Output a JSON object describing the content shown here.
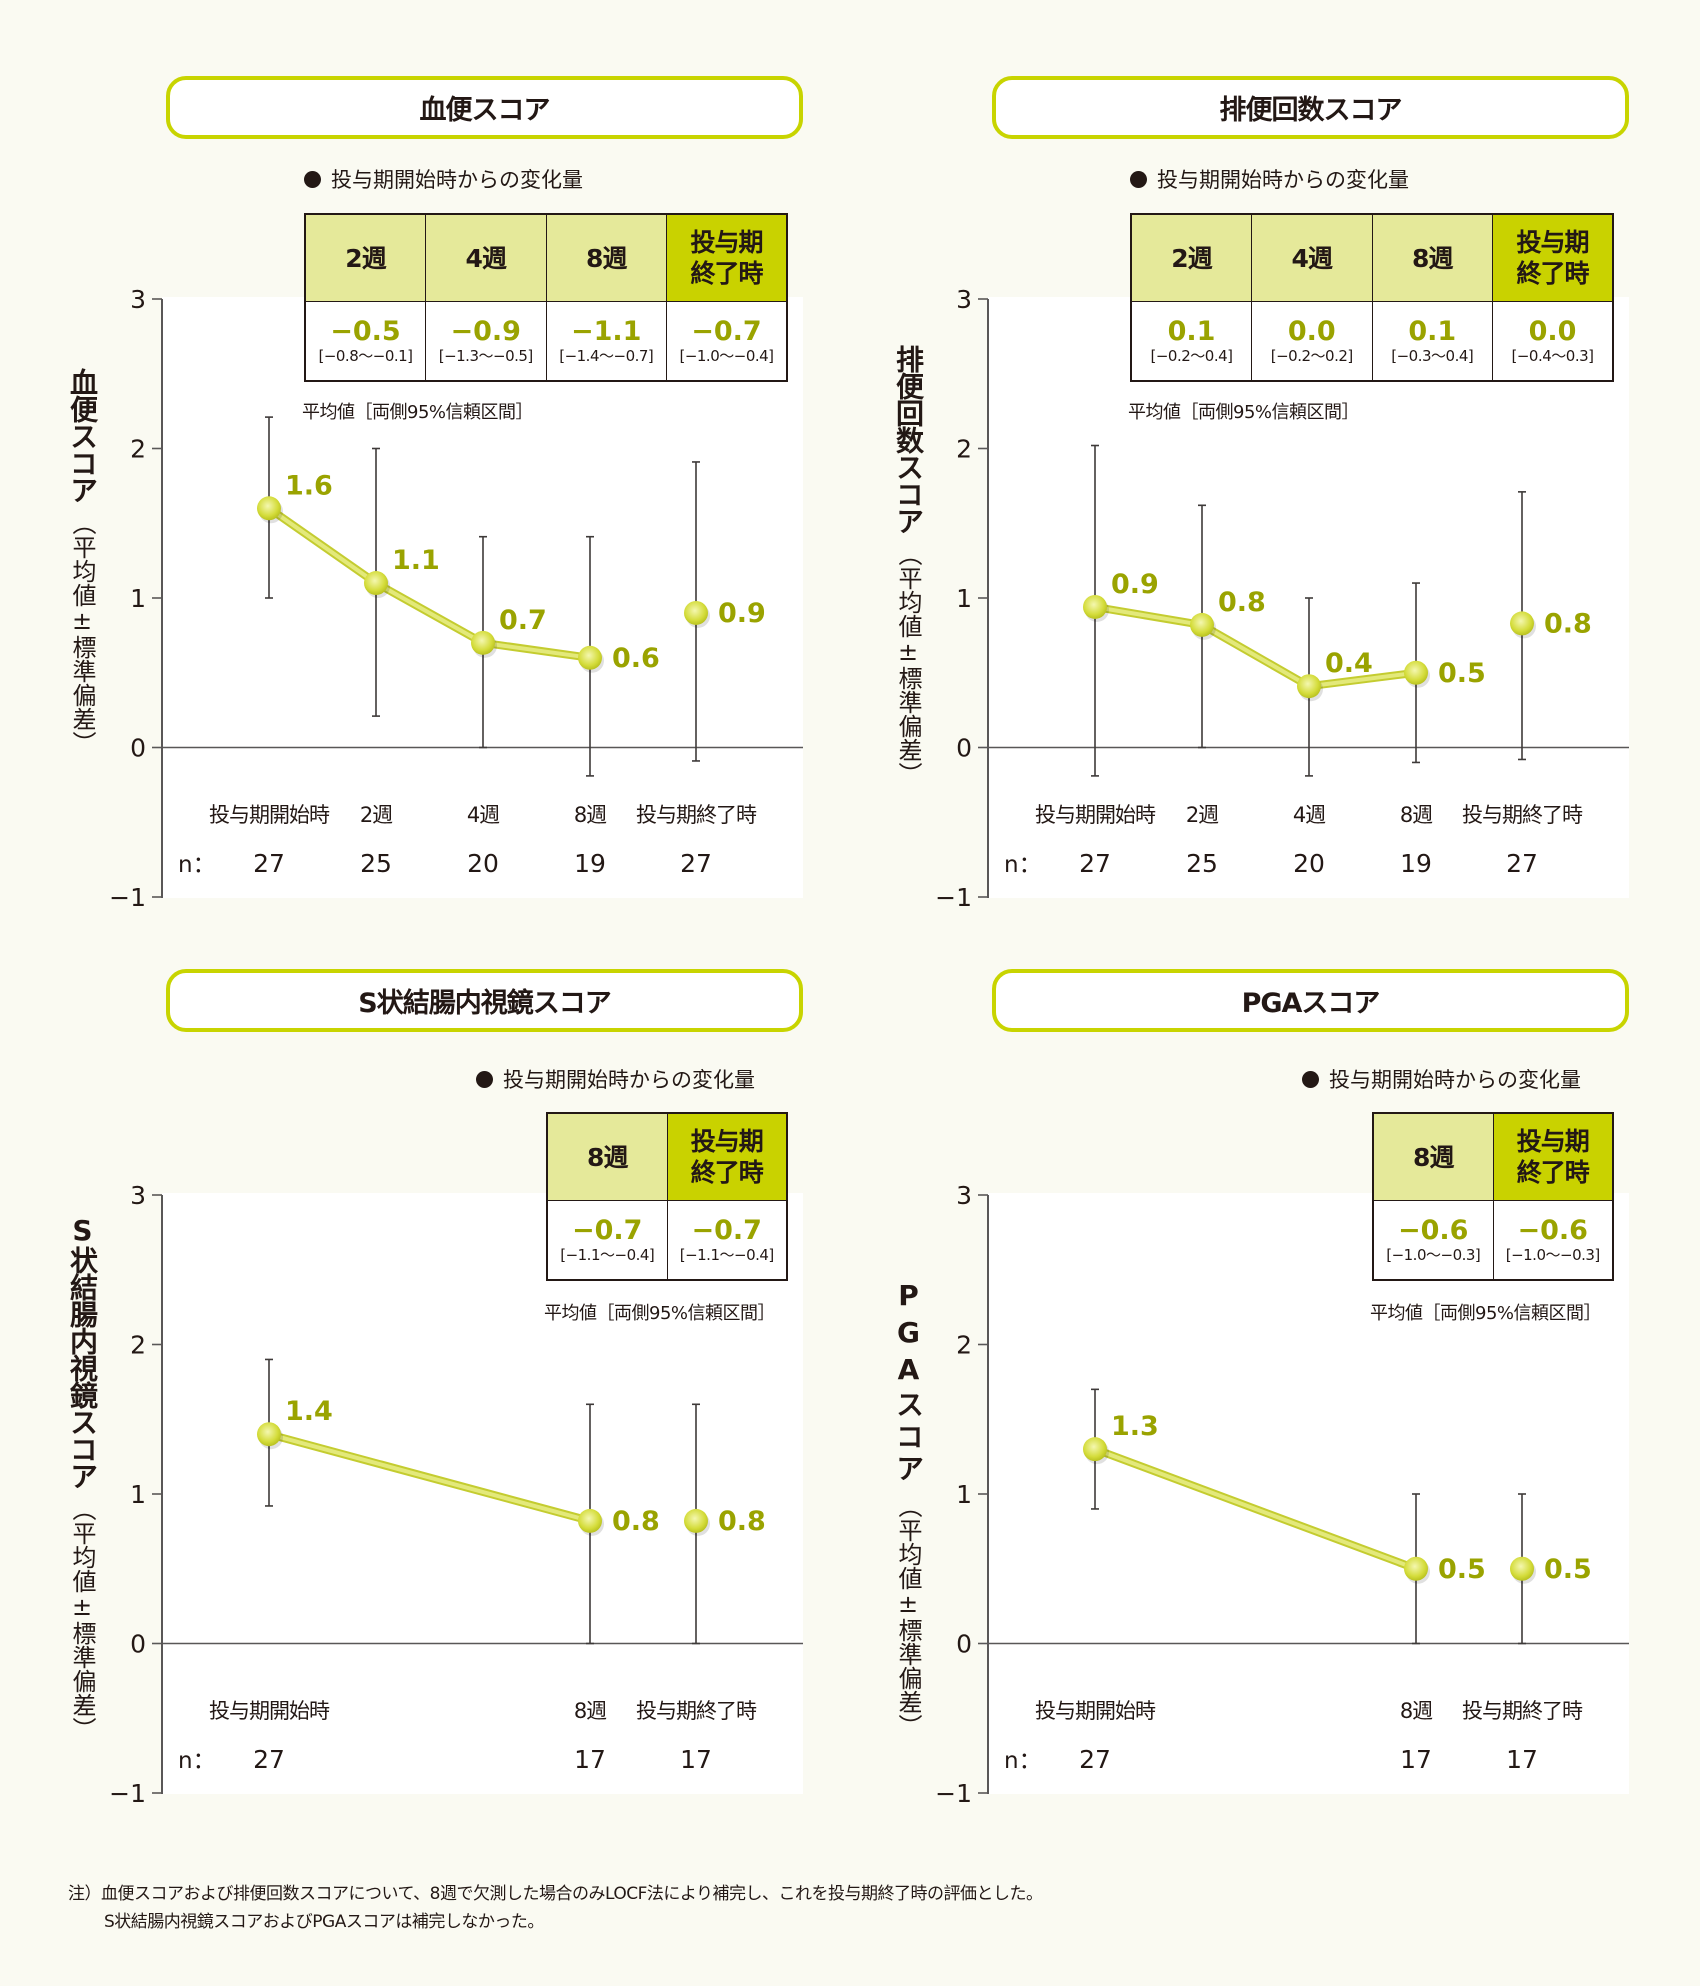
{
  "common": {
    "change_heading": "投与期開始時からの変化量",
    "ci_note": "平均値［両側95%信頼区間］",
    "y_sub_label": "（平均値±標準偏差）",
    "n_label": "n：",
    "colors": {
      "background": "#fafaf2",
      "accent_border": "#c8d400",
      "header_light": "#e5e99a",
      "header_final": "#c9d200",
      "value_text": "#9aa300",
      "line": "#d8e060",
      "marker": "#d4dc3a"
    }
  },
  "chart_data": [
    {
      "type": "line",
      "title": "血便スコア",
      "ylabel": "血便スコア",
      "ylim": [
        -1,
        3
      ],
      "yticks": [
        "3",
        "2",
        "1",
        "0",
        "−1"
      ],
      "categories": [
        "投与期開始時",
        "2週",
        "4週",
        "8週",
        "投与期終了時"
      ],
      "n": [
        "27",
        "25",
        "20",
        "19",
        "27"
      ],
      "series": [
        {
          "name": "平均値",
          "values": [
            1.6,
            1.1,
            0.7,
            0.6,
            0.9
          ],
          "labels": [
            "1.6",
            "1.1",
            "0.7",
            "0.6",
            "0.9"
          ],
          "connected": [
            true,
            true,
            true,
            true,
            false
          ]
        }
      ],
      "error_bars": [
        [
          1.0,
          2.21
        ],
        [
          0.21,
          2.0
        ],
        [
          0.0,
          1.41
        ],
        [
          -0.19,
          1.41
        ],
        [
          -0.09,
          1.91
        ]
      ],
      "change_table": [
        {
          "header": "2週",
          "value": "−0.5",
          "ci": "[−0.8〜−0.1]",
          "final": false
        },
        {
          "header": "4週",
          "value": "−0.9",
          "ci": "[−1.3〜−0.5]",
          "final": false
        },
        {
          "header": "8週",
          "value": "−1.1",
          "ci": "[−1.4〜−0.7]",
          "final": false
        },
        {
          "header": "投与期\n終了時",
          "value": "−0.7",
          "ci": "[−1.0〜−0.4]",
          "final": true
        }
      ]
    },
    {
      "type": "line",
      "title": "排便回数スコア",
      "ylabel": "排便回数スコア",
      "ylim": [
        -1,
        3
      ],
      "yticks": [
        "3",
        "2",
        "1",
        "0",
        "−1"
      ],
      "categories": [
        "投与期開始時",
        "2週",
        "4週",
        "8週",
        "投与期終了時"
      ],
      "n": [
        "27",
        "25",
        "20",
        "19",
        "27"
      ],
      "series": [
        {
          "name": "平均値",
          "values": [
            0.94,
            0.82,
            0.41,
            0.5,
            0.83
          ],
          "labels": [
            "0.9",
            "0.8",
            "0.4",
            "0.5",
            "0.8"
          ],
          "connected": [
            true,
            true,
            true,
            true,
            false
          ]
        }
      ],
      "error_bars": [
        [
          -0.19,
          2.02
        ],
        [
          0.0,
          1.62
        ],
        [
          -0.19,
          1.0
        ],
        [
          -0.1,
          1.1
        ],
        [
          -0.08,
          1.71
        ]
      ],
      "change_table": [
        {
          "header": "2週",
          "value": "0.1",
          "ci": "[−0.2〜0.4]",
          "final": false
        },
        {
          "header": "4週",
          "value": "0.0",
          "ci": "[−0.2〜0.2]",
          "final": false
        },
        {
          "header": "8週",
          "value": "0.1",
          "ci": "[−0.3〜0.4]",
          "final": false
        },
        {
          "header": "投与期\n終了時",
          "value": "0.0",
          "ci": "[−0.4〜0.3]",
          "final": true
        }
      ]
    },
    {
      "type": "line",
      "title": "S状結腸内視鏡スコア",
      "ylabel": "S状結腸内視鏡スコア",
      "ylim": [
        -1,
        3
      ],
      "yticks": [
        "3",
        "2",
        "1",
        "0",
        "−1"
      ],
      "categories": [
        "投与期開始時",
        "8週",
        "投与期終了時"
      ],
      "category_slots": [
        0,
        3,
        4
      ],
      "n": [
        "27",
        "17",
        "17"
      ],
      "series": [
        {
          "name": "平均値",
          "values": [
            1.4,
            0.82,
            0.82
          ],
          "labels": [
            "1.4",
            "0.8",
            "0.8"
          ],
          "connected": [
            true,
            true,
            false
          ]
        }
      ],
      "error_bars": [
        [
          0.92,
          1.9
        ],
        [
          0.0,
          1.6
        ],
        [
          0.0,
          1.6
        ]
      ],
      "change_table": [
        {
          "header": "8週",
          "value": "−0.7",
          "ci": "[−1.1〜−0.4]",
          "final": false
        },
        {
          "header": "投与期\n終了時",
          "value": "−0.7",
          "ci": "[−1.1〜−0.4]",
          "final": true
        }
      ]
    },
    {
      "type": "line",
      "title": "PGAスコア",
      "ylabel": "PGAスコア",
      "ylim": [
        -1,
        3
      ],
      "yticks": [
        "3",
        "2",
        "1",
        "0",
        "−1"
      ],
      "categories": [
        "投与期開始時",
        "8週",
        "投与期終了時"
      ],
      "category_slots": [
        0,
        3,
        4
      ],
      "n": [
        "27",
        "17",
        "17"
      ],
      "series": [
        {
          "name": "平均値",
          "values": [
            1.3,
            0.5,
            0.5
          ],
          "labels": [
            "1.3",
            "0.5",
            "0.5"
          ],
          "connected": [
            true,
            true,
            false
          ]
        }
      ],
      "error_bars": [
        [
          0.9,
          1.7
        ],
        [
          0.0,
          1.0
        ],
        [
          0.0,
          1.0
        ]
      ],
      "change_table": [
        {
          "header": "8週",
          "value": "−0.6",
          "ci": "[−1.0〜−0.3]",
          "final": false
        },
        {
          "header": "投与期\n終了時",
          "value": "−0.6",
          "ci": "[−1.0〜−0.3]",
          "final": true
        }
      ]
    }
  ],
  "footnote": {
    "line1": "注）血便スコアおよび排便回数スコアについて、8週で欠測した場合のみLOCF法により補完し、これを投与期終了時の評価とした。",
    "line2": "S状結腸内視鏡スコアおよびPGAスコアは補完しなかった。"
  }
}
